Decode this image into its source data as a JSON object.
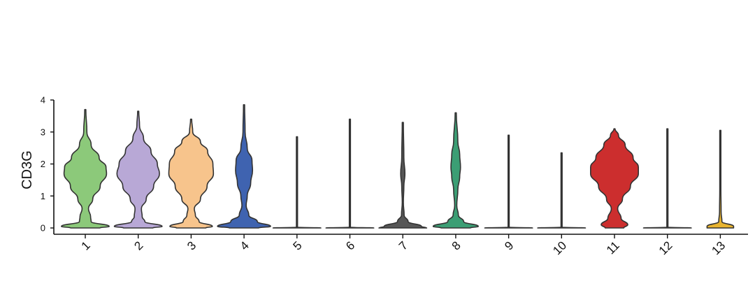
{
  "chart_data": {
    "type": "violin",
    "ylabel": "CD3G",
    "xlabel": "",
    "ylim": [
      0,
      4
    ],
    "yticks": [
      "0",
      "1",
      "2",
      "3",
      "4"
    ],
    "categories": [
      "1",
      "2",
      "3",
      "4",
      "5",
      "6",
      "7",
      "8",
      "9",
      "10",
      "11",
      "12",
      "13"
    ],
    "violins": [
      {
        "category": "1",
        "color": "#8CC97A",
        "max": 3.7,
        "shape": [
          [
            0,
            0.55
          ],
          [
            0.05,
            0.9
          ],
          [
            0.2,
            0.22
          ],
          [
            0.35,
            0.2
          ],
          [
            0.6,
            0.12
          ],
          [
            0.9,
            0.28
          ],
          [
            1.3,
            0.56
          ],
          [
            1.7,
            0.8
          ],
          [
            1.9,
            0.78
          ],
          [
            2.2,
            0.52
          ],
          [
            2.6,
            0.22
          ],
          [
            3.0,
            0.06
          ],
          [
            3.7,
            0.01
          ]
        ]
      },
      {
        "category": "2",
        "color": "#B8A8D6",
        "max": 3.65,
        "shape": [
          [
            0,
            0.55
          ],
          [
            0.05,
            0.9
          ],
          [
            0.2,
            0.25
          ],
          [
            0.35,
            0.15
          ],
          [
            0.6,
            0.12
          ],
          [
            0.9,
            0.3
          ],
          [
            1.3,
            0.58
          ],
          [
            1.7,
            0.8
          ],
          [
            2.0,
            0.72
          ],
          [
            2.4,
            0.48
          ],
          [
            2.8,
            0.2
          ],
          [
            3.2,
            0.05
          ],
          [
            3.65,
            0.01
          ]
        ]
      },
      {
        "category": "3",
        "color": "#F7C48C",
        "max": 3.4,
        "shape": [
          [
            0,
            0.55
          ],
          [
            0.05,
            0.8
          ],
          [
            0.2,
            0.3
          ],
          [
            0.4,
            0.16
          ],
          [
            0.6,
            0.12
          ],
          [
            0.9,
            0.35
          ],
          [
            1.3,
            0.6
          ],
          [
            1.7,
            0.84
          ],
          [
            2.0,
            0.82
          ],
          [
            2.4,
            0.62
          ],
          [
            2.7,
            0.35
          ],
          [
            3.0,
            0.06
          ],
          [
            3.4,
            0.01
          ]
        ]
      },
      {
        "category": "4",
        "color": "#3F63B0",
        "max": 3.85,
        "shape": [
          [
            0,
            0.55
          ],
          [
            0.05,
            1.0
          ],
          [
            0.2,
            0.5
          ],
          [
            0.4,
            0.18
          ],
          [
            0.7,
            0.08
          ],
          [
            1.0,
            0.12
          ],
          [
            1.4,
            0.25
          ],
          [
            1.8,
            0.32
          ],
          [
            2.1,
            0.3
          ],
          [
            2.5,
            0.12
          ],
          [
            3.0,
            0.04
          ],
          [
            3.85,
            0.01
          ]
        ]
      },
      {
        "category": "5",
        "color": "#4a4a4a",
        "max": 2.85,
        "shape": [
          [
            0,
            0.9
          ],
          [
            0.02,
            0.02
          ],
          [
            2.85,
            0.01
          ]
        ]
      },
      {
        "category": "6",
        "color": "#4a4a4a",
        "max": 3.4,
        "shape": [
          [
            0,
            0.9
          ],
          [
            0.02,
            0.02
          ],
          [
            3.4,
            0.01
          ]
        ]
      },
      {
        "category": "7",
        "color": "#565656",
        "max": 3.3,
        "shape": [
          [
            0,
            0.9
          ],
          [
            0.05,
            0.7
          ],
          [
            0.2,
            0.2
          ],
          [
            0.4,
            0.05
          ],
          [
            0.8,
            0.02
          ],
          [
            1.3,
            0.04
          ],
          [
            1.7,
            0.08
          ],
          [
            2.2,
            0.04
          ],
          [
            3.3,
            0.01
          ]
        ]
      },
      {
        "category": "8",
        "color": "#3B9E74",
        "max": 3.6,
        "shape": [
          [
            0,
            0.55
          ],
          [
            0.05,
            0.85
          ],
          [
            0.2,
            0.3
          ],
          [
            0.4,
            0.1
          ],
          [
            0.7,
            0.04
          ],
          [
            1.2,
            0.08
          ],
          [
            1.6,
            0.15
          ],
          [
            1.9,
            0.18
          ],
          [
            2.3,
            0.15
          ],
          [
            2.7,
            0.08
          ],
          [
            3.6,
            0.01
          ]
        ]
      },
      {
        "category": "9",
        "color": "#4a4a4a",
        "max": 2.9,
        "shape": [
          [
            0,
            0.9
          ],
          [
            0.02,
            0.02
          ],
          [
            2.9,
            0.01
          ]
        ]
      },
      {
        "category": "10",
        "color": "#4a4a4a",
        "max": 2.35,
        "shape": [
          [
            0,
            0.9
          ],
          [
            0.02,
            0.02
          ],
          [
            2.35,
            0.01
          ]
        ]
      },
      {
        "category": "11",
        "color": "#CC2E2E",
        "max": 3.1,
        "shape": [
          [
            0,
            0.35
          ],
          [
            0.1,
            0.5
          ],
          [
            0.3,
            0.25
          ],
          [
            0.6,
            0.12
          ],
          [
            0.9,
            0.3
          ],
          [
            1.3,
            0.6
          ],
          [
            1.7,
            0.9
          ],
          [
            1.9,
            0.9
          ],
          [
            2.2,
            0.7
          ],
          [
            2.6,
            0.4
          ],
          [
            2.9,
            0.15
          ],
          [
            3.1,
            0.02
          ]
        ]
      },
      {
        "category": "12",
        "color": "#4a4a4a",
        "max": 3.1,
        "shape": [
          [
            0,
            0.9
          ],
          [
            0.02,
            0.02
          ],
          [
            3.1,
            0.01
          ]
        ]
      },
      {
        "category": "13",
        "color": "#E8B430",
        "max": 3.05,
        "shape": [
          [
            0,
            0.5
          ],
          [
            0.05,
            0.5
          ],
          [
            0.2,
            0.06
          ],
          [
            0.5,
            0.03
          ],
          [
            1.2,
            0.02
          ],
          [
            3.05,
            0.01
          ]
        ]
      }
    ]
  }
}
